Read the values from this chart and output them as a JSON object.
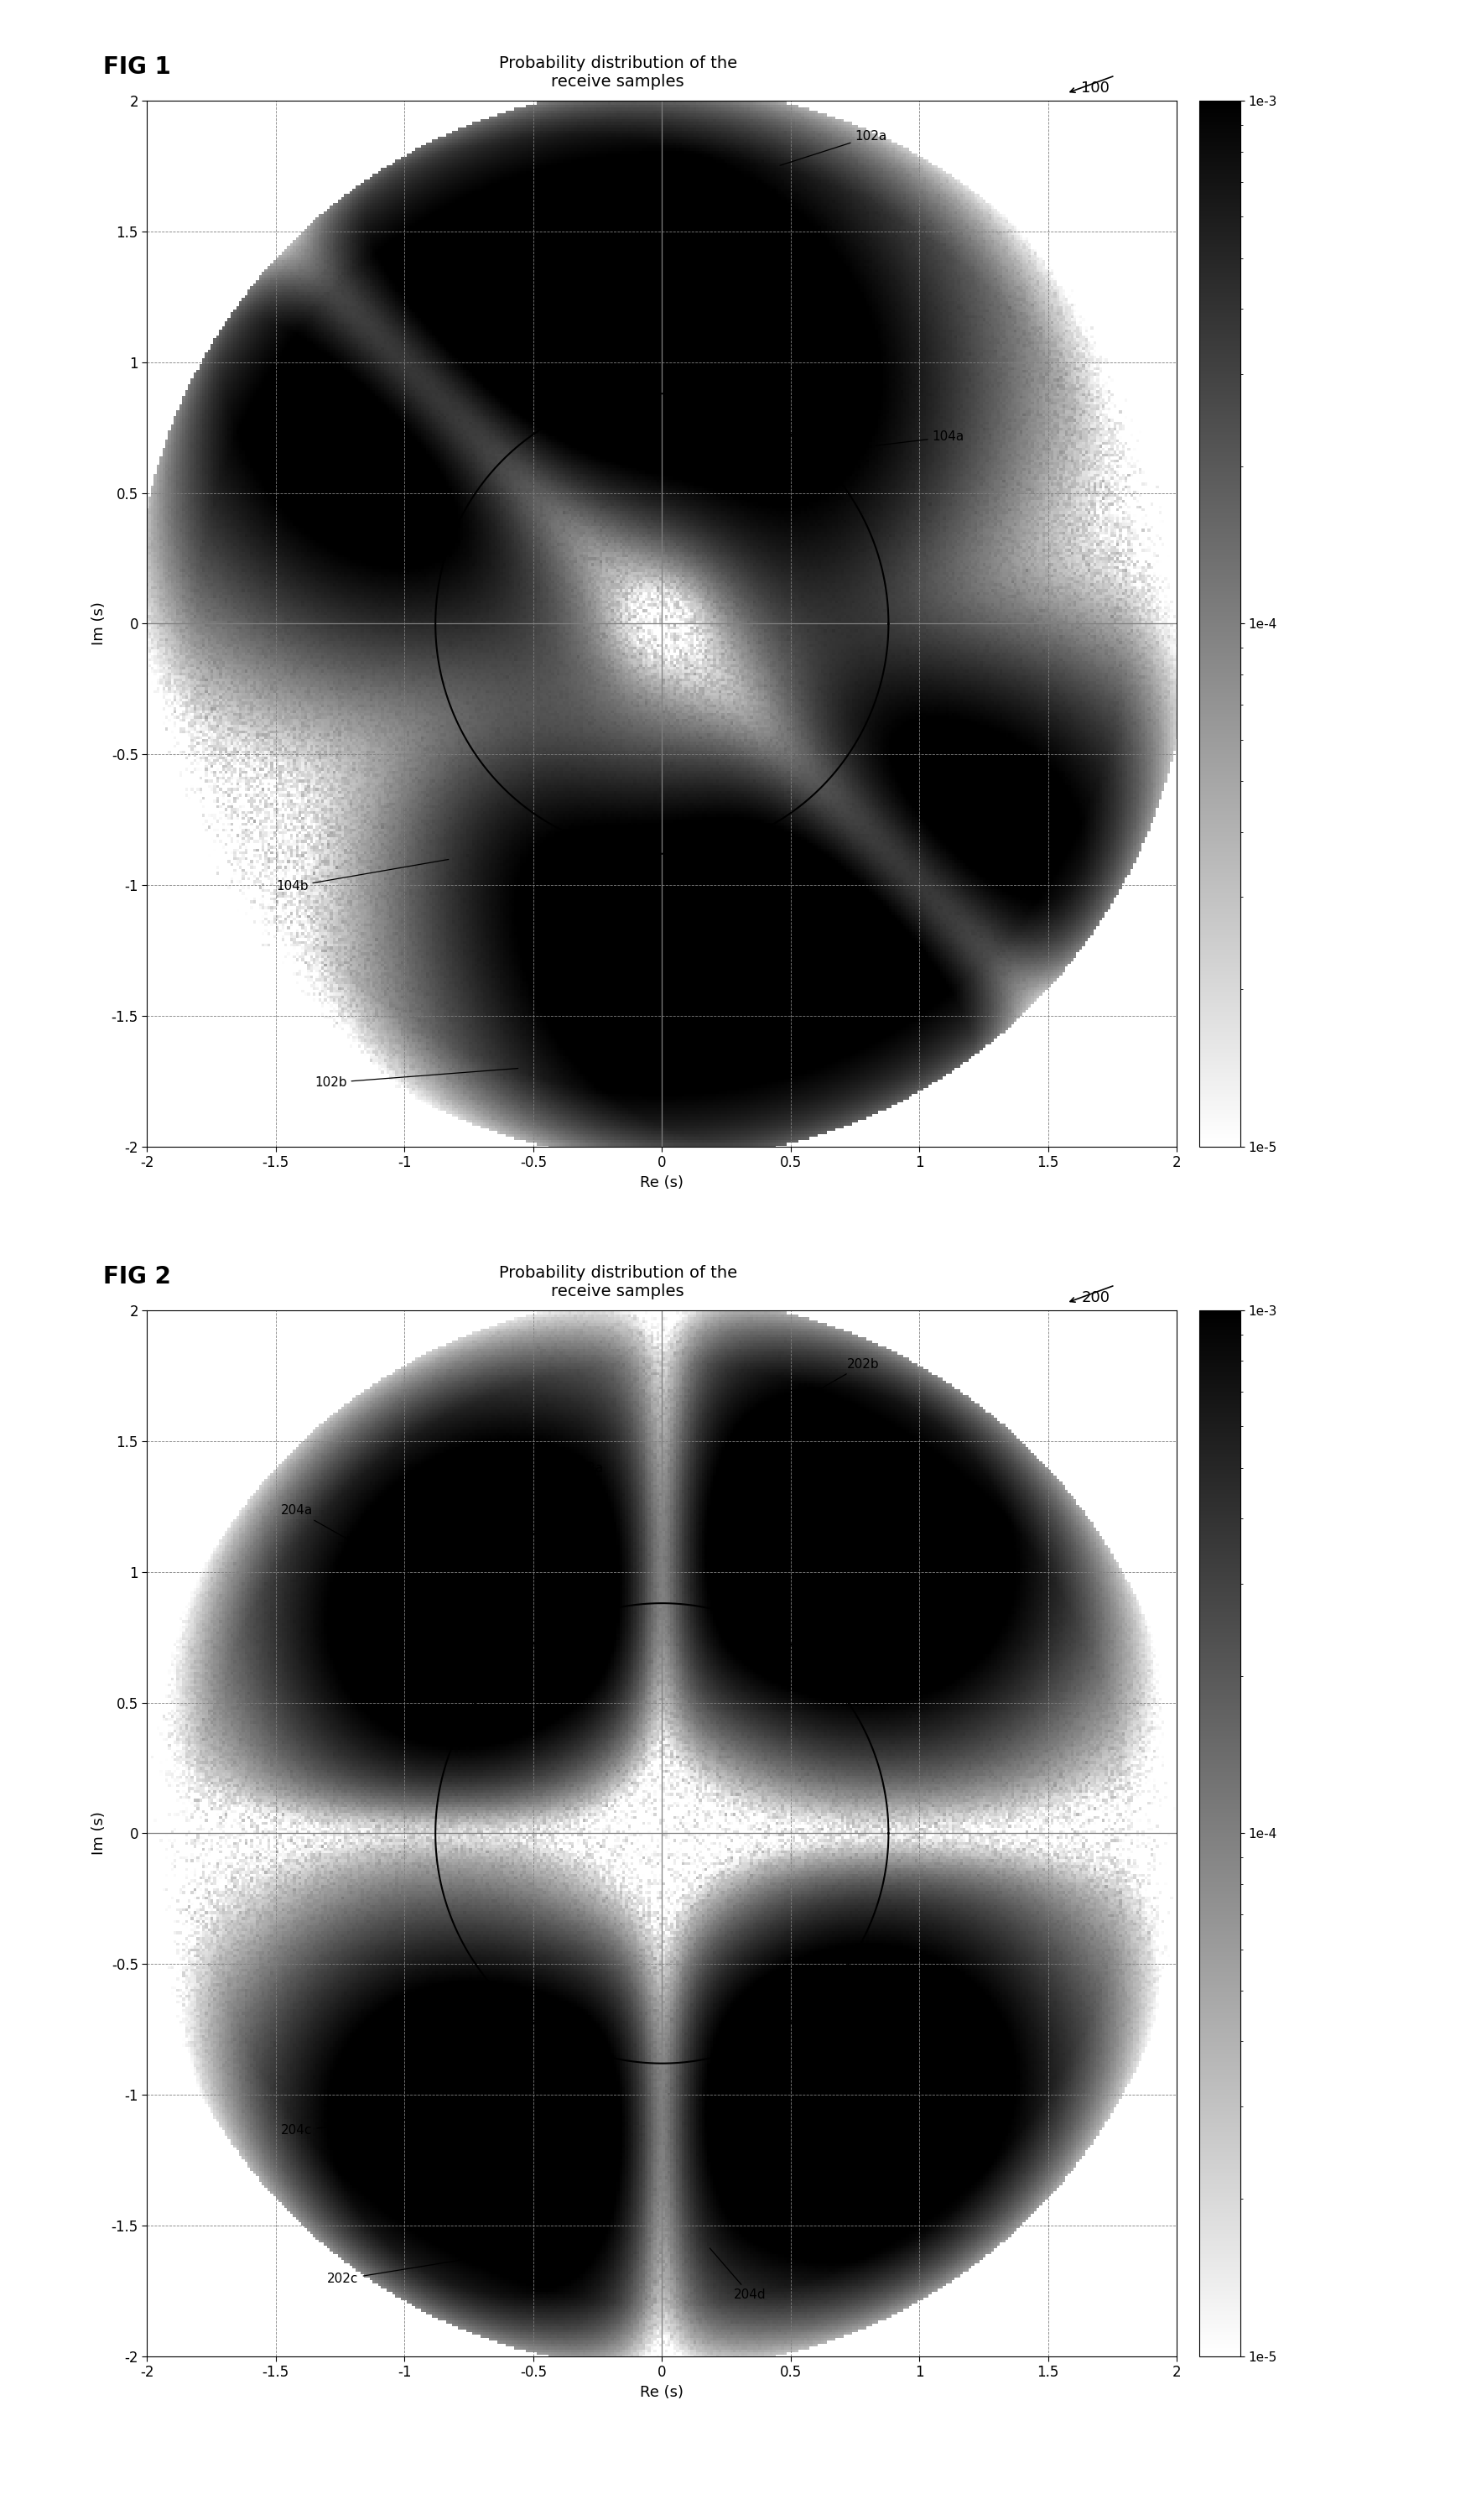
{
  "fig1_title": "Probability distribution of the\nreceive samples",
  "fig2_title": "Probability distribution of the\nreceive samples",
  "fig1_label": "FIG 1",
  "fig2_label": "FIG 2",
  "fig1_ref": "100",
  "fig2_ref": "200",
  "xlabel": "Re (s)",
  "ylabel": "Im (s)",
  "xlim": [
    -2,
    2
  ],
  "ylim": [
    -2,
    2
  ],
  "xticks": [
    -2,
    -1.5,
    -1,
    -0.5,
    0,
    0.5,
    1,
    1.5,
    2
  ],
  "yticks": [
    -2,
    -1.5,
    -1,
    -0.5,
    0,
    0.5,
    1,
    1.5,
    2
  ],
  "xtick_labels": [
    "-2",
    "-1.5",
    "-1",
    "-0.5",
    "0",
    "0.5",
    "1",
    "1.5",
    "2"
  ],
  "ytick_labels": [
    "-2",
    "-1.5",
    "-1",
    "-0.5",
    "0",
    "0.5",
    "1",
    "1.5",
    "2"
  ],
  "cbar_vmin": 1e-05,
  "cbar_vmax": 0.001,
  "cbar_ticks": [
    1e-05,
    0.0001,
    0.001
  ],
  "cbar_ticklabels": [
    "1e-5",
    "1e-4",
    "1e-3"
  ],
  "background_color": "#ffffff",
  "fig1_circle_r": 0.88,
  "fig2_circle_r": 0.88
}
